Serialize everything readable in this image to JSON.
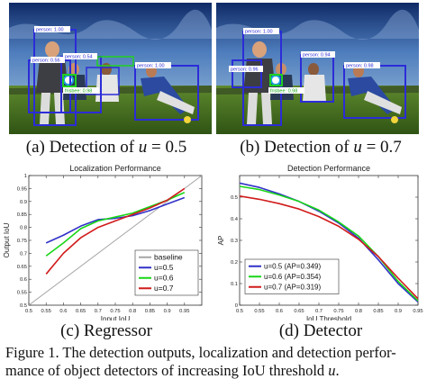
{
  "panels": [
    {
      "id": "a",
      "caption_prefix": "(a) Detection of ",
      "caption_var": "u",
      "caption_eq": " = 0.5",
      "boxes": [
        {
          "label": "person: 1.00",
          "color": "#2c2cd8"
        },
        {
          "label": "person: 0.56",
          "color": "#2c2cd8"
        },
        {
          "label": "person: 0.54",
          "color": "#2c2cd8"
        },
        {
          "label": "person: 1.00",
          "color": "#2c2cd8"
        },
        {
          "label": "frisbee: 0.98",
          "color": "#1fd11f"
        }
      ]
    },
    {
      "id": "b",
      "caption_prefix": "(b) Detection of ",
      "caption_var": "u",
      "caption_eq": " = 0.7",
      "boxes": [
        {
          "label": "person: 1.00",
          "color": "#2c2cd8"
        },
        {
          "label": "person: 0.96",
          "color": "#2c2cd8"
        },
        {
          "label": "person: 0.94",
          "color": "#2c2cd8"
        },
        {
          "label": "person: 0.98",
          "color": "#2c2cd8"
        },
        {
          "label": "frisbee: 0.98",
          "color": "#1fd11f"
        }
      ]
    }
  ],
  "chart_data": [
    {
      "type": "line",
      "title": "Localization Performance",
      "xlabel": "Input IoU",
      "ylabel": "Output IoU",
      "xlim": [
        0.5,
        1.0
      ],
      "ylim": [
        0.5,
        1.0
      ],
      "xticks": [
        "0.5",
        "0.55",
        "0.6",
        "0.65",
        "0.7",
        "0.75",
        "0.8",
        "0.85",
        "0.9",
        "0.95"
      ],
      "yticks": [
        "0.5",
        "0.55",
        "0.6",
        "0.65",
        "0.7",
        "0.75",
        "0.8",
        "0.85",
        "0.9",
        "0.95",
        "1"
      ],
      "legend": "bottom-right",
      "caption": "(c) Regressor",
      "series": [
        {
          "name": "baseline",
          "color": "#a6a6a6",
          "x": [
            0.5,
            1.0
          ],
          "y": [
            0.5,
            1.0
          ]
        },
        {
          "name": "u=0.5",
          "color": "#3131c8",
          "x": [
            0.55,
            0.6,
            0.65,
            0.7,
            0.75,
            0.8,
            0.85,
            0.9,
            0.95
          ],
          "y": [
            0.74,
            0.77,
            0.805,
            0.83,
            0.835,
            0.845,
            0.865,
            0.89,
            0.915
          ]
        },
        {
          "name": "u=0.6",
          "color": "#17d617",
          "x": [
            0.55,
            0.6,
            0.65,
            0.7,
            0.75,
            0.8,
            0.85,
            0.9,
            0.95
          ],
          "y": [
            0.69,
            0.74,
            0.795,
            0.825,
            0.84,
            0.855,
            0.88,
            0.905,
            0.935
          ]
        },
        {
          "name": "u=0.7",
          "color": "#d11b1b",
          "x": [
            0.55,
            0.6,
            0.65,
            0.7,
            0.75,
            0.8,
            0.85,
            0.9,
            0.95
          ],
          "y": [
            0.62,
            0.7,
            0.76,
            0.8,
            0.825,
            0.85,
            0.875,
            0.905,
            0.95
          ]
        }
      ]
    },
    {
      "type": "line",
      "title": "Detection Performance",
      "xlabel": "IoU Threshold",
      "ylabel": "AP",
      "xlim": [
        0.5,
        0.95
      ],
      "ylim": [
        0,
        0.6
      ],
      "xticks": [
        "0.5",
        "0.55",
        "0.6",
        "0.65",
        "0.7",
        "0.75",
        "0.8",
        "0.85",
        "0.9",
        "0.95"
      ],
      "yticks": [
        "0",
        "0.1",
        "0.2",
        "0.3",
        "0.4",
        "0.5"
      ],
      "legend": "bottom-left",
      "caption": "(d) Detector",
      "series": [
        {
          "name": "u=0.5 (AP=0.349)",
          "color": "#3131c8",
          "x": [
            0.5,
            0.55,
            0.6,
            0.65,
            0.7,
            0.75,
            0.8,
            0.85,
            0.9,
            0.95
          ],
          "y": [
            0.565,
            0.545,
            0.515,
            0.48,
            0.435,
            0.38,
            0.31,
            0.21,
            0.1,
            0.015
          ]
        },
        {
          "name": "u=0.6 (AP=0.354)",
          "color": "#17d617",
          "x": [
            0.5,
            0.55,
            0.6,
            0.65,
            0.7,
            0.75,
            0.8,
            0.85,
            0.9,
            0.95
          ],
          "y": [
            0.55,
            0.535,
            0.51,
            0.48,
            0.44,
            0.385,
            0.32,
            0.225,
            0.11,
            0.02
          ]
        },
        {
          "name": "u=0.7 (AP=0.319)",
          "color": "#d11b1b",
          "x": [
            0.5,
            0.55,
            0.6,
            0.65,
            0.7,
            0.75,
            0.8,
            0.85,
            0.9,
            0.95
          ],
          "y": [
            0.505,
            0.49,
            0.47,
            0.445,
            0.41,
            0.365,
            0.305,
            0.225,
            0.125,
            0.03
          ]
        }
      ]
    }
  ],
  "figure_caption": {
    "part1": "Figure 1. The detection outputs, localization and detection perfor-mance of object detectors of increasing IoU threshold ",
    "var": "u",
    "part2": "."
  }
}
